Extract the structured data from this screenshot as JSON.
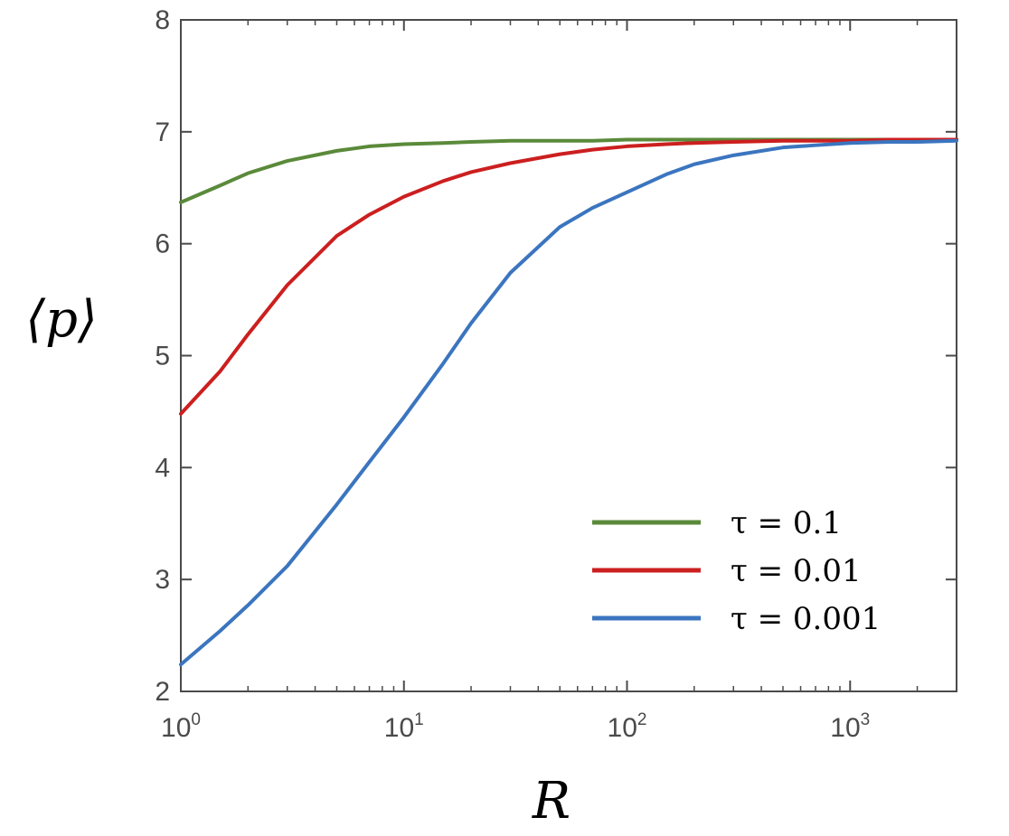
{
  "chart_data": {
    "type": "line",
    "title": "",
    "xlabel": "R",
    "ylabel": "⟨p⟩",
    "x_scale": "log",
    "xlim": [
      1,
      3000
    ],
    "ylim": [
      2,
      8
    ],
    "x_ticks": [
      {
        "value": 1,
        "base": "10",
        "exp": "0"
      },
      {
        "value": 10,
        "base": "10",
        "exp": "1"
      },
      {
        "value": 100,
        "base": "10",
        "exp": "2"
      },
      {
        "value": 1000,
        "base": "10",
        "exp": "3"
      }
    ],
    "y_ticks": [
      2,
      3,
      4,
      5,
      6,
      7,
      8
    ],
    "grid": false,
    "legend_position": "bottom-right",
    "x": [
      1,
      1.5,
      2,
      3,
      5,
      7,
      10,
      15,
      20,
      30,
      50,
      70,
      100,
      150,
      200,
      300,
      500,
      700,
      1000,
      1500,
      2000,
      3000
    ],
    "series": [
      {
        "name": "τ = 0.1",
        "color": "#5a8a3a",
        "values": [
          6.37,
          6.52,
          6.63,
          6.74,
          6.83,
          6.87,
          6.89,
          6.9,
          6.91,
          6.92,
          6.92,
          6.92,
          6.93,
          6.93,
          6.93,
          6.93,
          6.93,
          6.93,
          6.93,
          6.93,
          6.93,
          6.93
        ]
      },
      {
        "name": "τ = 0.01",
        "color": "#cc1f1f",
        "values": [
          4.48,
          4.86,
          5.19,
          5.63,
          6.07,
          6.26,
          6.42,
          6.56,
          6.64,
          6.72,
          6.8,
          6.84,
          6.87,
          6.89,
          6.9,
          6.91,
          6.92,
          6.92,
          6.92,
          6.93,
          6.93,
          6.93
        ]
      },
      {
        "name": "τ = 0.001",
        "color": "#3b75bf",
        "values": [
          2.24,
          2.54,
          2.77,
          3.12,
          3.67,
          4.05,
          4.45,
          4.93,
          5.29,
          5.74,
          6.15,
          6.32,
          6.46,
          6.62,
          6.71,
          6.79,
          6.86,
          6.88,
          6.9,
          6.91,
          6.91,
          6.92
        ]
      }
    ]
  }
}
